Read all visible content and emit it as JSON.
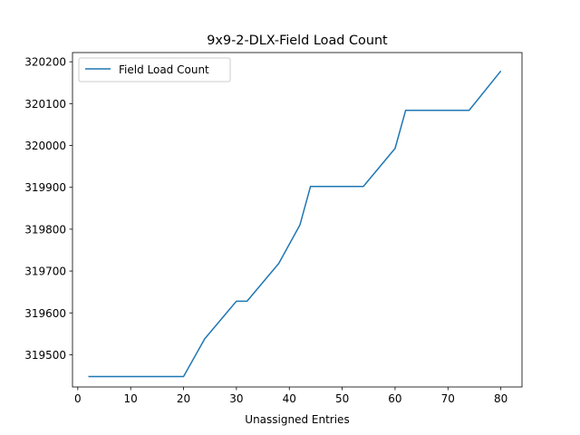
{
  "chart_data": {
    "type": "line",
    "title": "9x9-2-DLX-Field Load Count",
    "xlabel": "Unassigned Entries",
    "ylabel": "",
    "xlim": [
      -1,
      84
    ],
    "ylim": [
      319423,
      320222
    ],
    "xticks": [
      0,
      10,
      20,
      30,
      40,
      50,
      60,
      70,
      80
    ],
    "yticks": [
      319500,
      319600,
      319700,
      319800,
      319900,
      320000,
      320100,
      320200
    ],
    "grid": false,
    "legend_position": "upper left",
    "series": [
      {
        "name": "Field Load Count",
        "color": "#1f77b4",
        "x": [
          2,
          20,
          24,
          30,
          32,
          38,
          42,
          44,
          54,
          60,
          62,
          74,
          80
        ],
        "y": [
          319448,
          319448,
          319538,
          319628,
          319628,
          319718,
          319810,
          319902,
          319902,
          319993,
          320084,
          320084,
          320178
        ]
      }
    ]
  }
}
